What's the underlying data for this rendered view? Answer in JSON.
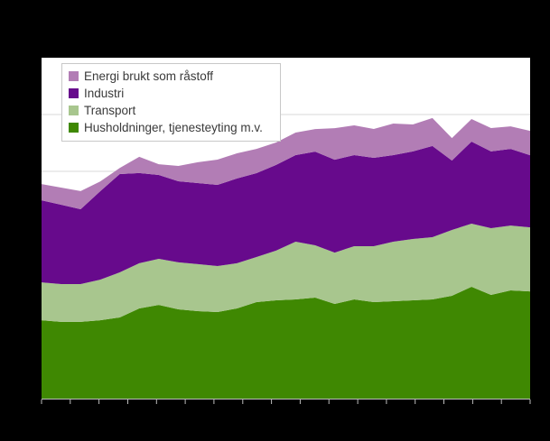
{
  "page": {
    "background": "#000000",
    "title_visible": false
  },
  "plot": {
    "background": "#ffffff",
    "gridline_color": "#d9d9d9",
    "axis_color": "#bdbdbd"
  },
  "legend": {
    "items": [
      {
        "label": "Energi brukt som råstoff",
        "color": "#b27db5"
      },
      {
        "label": "Industri",
        "color": "#670a8c"
      },
      {
        "label": "Transport",
        "color": "#a8c68e"
      },
      {
        "label": "Husholdninger, tjenesteyting m.v.",
        "color": "#3f8802"
      }
    ]
  },
  "chart_data": {
    "type": "area",
    "stacked": true,
    "title": "",
    "xlabel": "",
    "ylabel": "",
    "legend_position": "top-left-inside",
    "grid": "horizontal",
    "x": {
      "points": 26,
      "tick_count": 18,
      "tick_labels_visible": false
    },
    "y": {
      "min": 0,
      "max": 300,
      "gridline_step": 50,
      "tick_labels_visible": false
    },
    "series": [
      {
        "id": "husholdninger-tjenesteyting",
        "name": "Husholdninger, tjenesteyting m.v.",
        "color": "#3f8802",
        "values": [
          69,
          67.5,
          67.5,
          69,
          71.4,
          79.4,
          82.5,
          78.6,
          77,
          76.2,
          79.4,
          84.9,
          86.5,
          87.3,
          88.9,
          83.3,
          87.3,
          84.9,
          85.7,
          86.5,
          87.3,
          90.5,
          98.4,
          91.3,
          95.2,
          94.4
        ]
      },
      {
        "id": "transport",
        "name": "Transport",
        "color": "#a8c68e",
        "values": [
          33.3,
          33.3,
          33.3,
          35.7,
          39.7,
          39.7,
          40.5,
          41.3,
          41.3,
          40.5,
          39.7,
          39.7,
          43.7,
          50.8,
          46,
          45.2,
          46.8,
          49.2,
          52.4,
          54,
          54.8,
          57.9,
          55.6,
          58.7,
          57.1,
          56.3
        ]
      },
      {
        "id": "industri",
        "name": "Industri",
        "color": "#670a8c",
        "values": [
          72.2,
          69.8,
          65.9,
          77.8,
          86.5,
          79.4,
          73.8,
          71.4,
          71.4,
          71.4,
          74.6,
          73.8,
          75.4,
          76.2,
          82.5,
          81.7,
          80.2,
          77.8,
          76.2,
          77,
          80.2,
          61.1,
          72.2,
          67.5,
          67.5,
          63.5
        ]
      },
      {
        "id": "energi-raastoff",
        "name": "Energi brukt som råstoff",
        "color": "#b27db5",
        "values": [
          14.3,
          15.1,
          15.9,
          8.5,
          5.3,
          14.3,
          9.5,
          13.5,
          18.3,
          22.2,
          22.2,
          21.4,
          19.8,
          19.8,
          19.8,
          27.8,
          26.2,
          25.4,
          27.8,
          23.8,
          24.6,
          19.8,
          19.8,
          20.6,
          19.8,
          21.4
        ]
      }
    ]
  }
}
